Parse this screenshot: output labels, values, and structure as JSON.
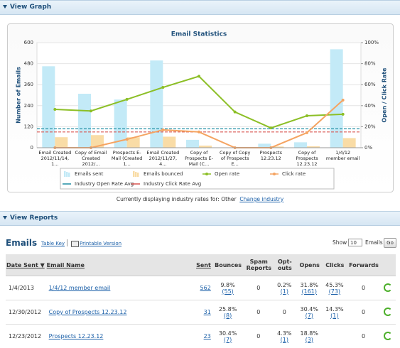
{
  "graph_panel": {
    "title": "View Graph"
  },
  "chart_data": {
    "type": "combo",
    "title": "Email Statistics",
    "y_label": "Number of Emails",
    "y2_label": "Open / Click Rate",
    "categories": [
      "Email Created 2012/11/14, 1...",
      "Copy of Email Created 2012/...",
      "Prospects E-Mail (Created 1...",
      "Email Created 2012/11/27, 4...",
      "Copy of Prospects E-Mail (C...",
      "Copy of Copy of Prospects E...",
      "Prospects 12.23.12",
      "Copy of Prospects 12.23.12",
      "1/4/12 member email"
    ],
    "series": [
      {
        "name": "Emails sent",
        "kind": "bar",
        "color": "#c3eaf7",
        "values": [
          465,
          308,
          275,
          498,
          45,
          2,
          23,
          31,
          562
        ]
      },
      {
        "name": "Emails bounced",
        "kind": "bar",
        "color": "#f9dca6",
        "values": [
          60,
          72,
          60,
          63,
          12,
          0,
          7,
          8,
          55
        ]
      },
      {
        "name": "Open rate",
        "kind": "line",
        "axis": "y2",
        "color": "#8cbf26",
        "values": [
          36.5,
          35,
          46,
          57.4,
          68,
          34,
          18.8,
          30.4,
          31.8
        ]
      },
      {
        "name": "Click rate",
        "kind": "line",
        "axis": "y2",
        "color": "#f5a462",
        "values": [
          0,
          0,
          8,
          17,
          15,
          0,
          0,
          14.3,
          45.3
        ]
      }
    ],
    "reference_lines": [
      {
        "name": "Industry Open Rate Avg",
        "axis": "y2",
        "color": "#1f8ea3",
        "value": 18
      },
      {
        "name": "Industry Click Rate Avg",
        "axis": "y2",
        "color": "#d9534f",
        "value": 15
      }
    ],
    "ylim": [
      0,
      600
    ],
    "yticks": [
      0,
      120,
      240,
      360,
      480,
      600
    ],
    "y2lim": [
      0,
      100
    ],
    "y2ticks": [
      {
        "value": 0,
        "label": "0%"
      },
      {
        "value": 20,
        "label": "20%"
      },
      {
        "value": 40,
        "label": "40%"
      },
      {
        "value": 60,
        "label": "60%"
      },
      {
        "value": 80,
        "label": "80%"
      },
      {
        "value": 100,
        "label": "100%"
      }
    ],
    "grid": true
  },
  "industry_note": {
    "text": "Currently displaying industry rates for: Other",
    "link": "Change industry"
  },
  "reports_panel": {
    "title": "View Reports"
  },
  "emails": {
    "title": "Emails",
    "table_key": "Table Key",
    "printable": "Printable Version",
    "show_label": "Show",
    "page_size": "10",
    "page_size_unit": "Emails",
    "go": "Go",
    "table": {
      "columns": [
        "Date Sent ▼",
        "Email Name",
        "Sent",
        "Bounces",
        "Spam Reports",
        "Opt-outs",
        "Opens",
        "Clicks",
        "Forwards"
      ],
      "rows": [
        [
          "1/4/2013",
          "1/4/12 member email",
          "562",
          [
            "9.8%",
            "(55)"
          ],
          "0",
          [
            "0.2%",
            "(1)"
          ],
          [
            "31.8%",
            "(161)"
          ],
          [
            "45.3%",
            "(73)"
          ],
          "0"
        ],
        [
          "12/30/2012",
          "Copy of Prospects 12.23.12",
          "31",
          [
            "25.8%",
            "(8)"
          ],
          "0",
          "0",
          [
            "30.4%",
            "(7)"
          ],
          [
            "14.3%",
            "(1)"
          ],
          "0"
        ],
        [
          "12/23/2012",
          "Prospects 12.23.12",
          "23",
          [
            "30.4%",
            "(7)"
          ],
          "0",
          [
            "4.3%",
            "(1)"
          ],
          [
            "18.8%",
            "(3)"
          ],
          null,
          "0"
        ]
      ]
    }
  }
}
